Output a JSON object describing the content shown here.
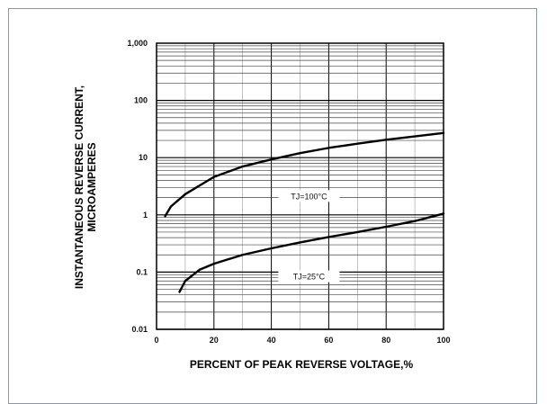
{
  "chart_data": {
    "type": "line",
    "xlabel": "PERCENT OF PEAK REVERSE VOLTAGE,%",
    "ylabel_line1": "INSTANTANEOUS REVERSE CURRENT,",
    "ylabel_line2": "MICROAMPERES",
    "xlim": [
      0,
      100
    ],
    "ylim": [
      0.01,
      1000
    ],
    "yscale": "log",
    "grid": true,
    "x_ticks": [
      0,
      20,
      40,
      60,
      80,
      100
    ],
    "x_tick_labels": [
      "0",
      "20",
      "40",
      "60",
      "80",
      "100"
    ],
    "y_ticks": [
      0.01,
      0.1,
      1,
      10,
      100,
      1000
    ],
    "y_tick_labels": [
      "0.01",
      "0.1",
      "1",
      "10",
      "100",
      "1,000"
    ],
    "series": [
      {
        "name": "TJ=100°C",
        "x": [
          3,
          5,
          10,
          20,
          30,
          40,
          50,
          60,
          70,
          80,
          90,
          100
        ],
        "y": [
          0.95,
          1.4,
          2.3,
          4.6,
          7.0,
          9.3,
          12.0,
          14.8,
          17.5,
          20.5,
          23.5,
          27.0
        ]
      },
      {
        "name": "TJ=25°C",
        "x": [
          8,
          10,
          15,
          20,
          30,
          40,
          50,
          60,
          70,
          80,
          90,
          100
        ],
        "y": [
          0.045,
          0.07,
          0.11,
          0.14,
          0.2,
          0.26,
          0.33,
          0.41,
          0.5,
          0.62,
          0.78,
          1.05
        ]
      }
    ]
  }
}
